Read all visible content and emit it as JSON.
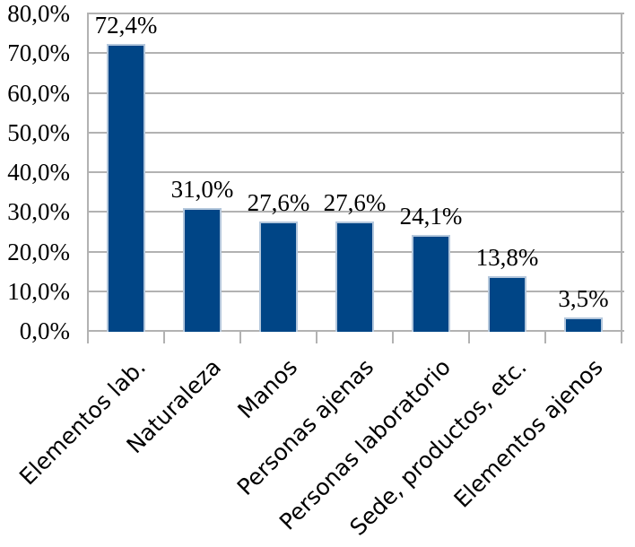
{
  "chart_data": {
    "type": "bar",
    "title": "",
    "xlabel": "",
    "ylabel": "",
    "legend_position": "none",
    "grid": true,
    "x_label_rotation_deg": -45,
    "ylim": [
      0,
      80
    ],
    "categories": [
      "Elementos lab.",
      "Naturaleza",
      "Manos",
      "Personas ajenas",
      "Personas laboratorio",
      "Sede, productos, etc.",
      "Elementos ajenos"
    ],
    "values": [
      72.4,
      31.0,
      27.6,
      27.6,
      24.1,
      13.8,
      3.5
    ],
    "data_labels": [
      "72,4%",
      "31,0%",
      "27,6%",
      "27,6%",
      "24,1%",
      "13,8%",
      "3,5%"
    ],
    "y_ticks": [
      {
        "value": 0,
        "label": "0,0%"
      },
      {
        "value": 10,
        "label": "10,0%"
      },
      {
        "value": 20,
        "label": "20,0%"
      },
      {
        "value": 30,
        "label": "30,0%"
      },
      {
        "value": 40,
        "label": "40,0%"
      },
      {
        "value": 50,
        "label": "50,0%"
      },
      {
        "value": 60,
        "label": "60,0%"
      },
      {
        "value": 70,
        "label": "70,0%"
      },
      {
        "value": 80,
        "label": "80,0%"
      }
    ],
    "colors": {
      "bar_fill": "#004586",
      "bar_border": "#b4c7dc",
      "gridline": "#b2b2b2",
      "text": "#000000",
      "background": "#ffffff"
    }
  }
}
